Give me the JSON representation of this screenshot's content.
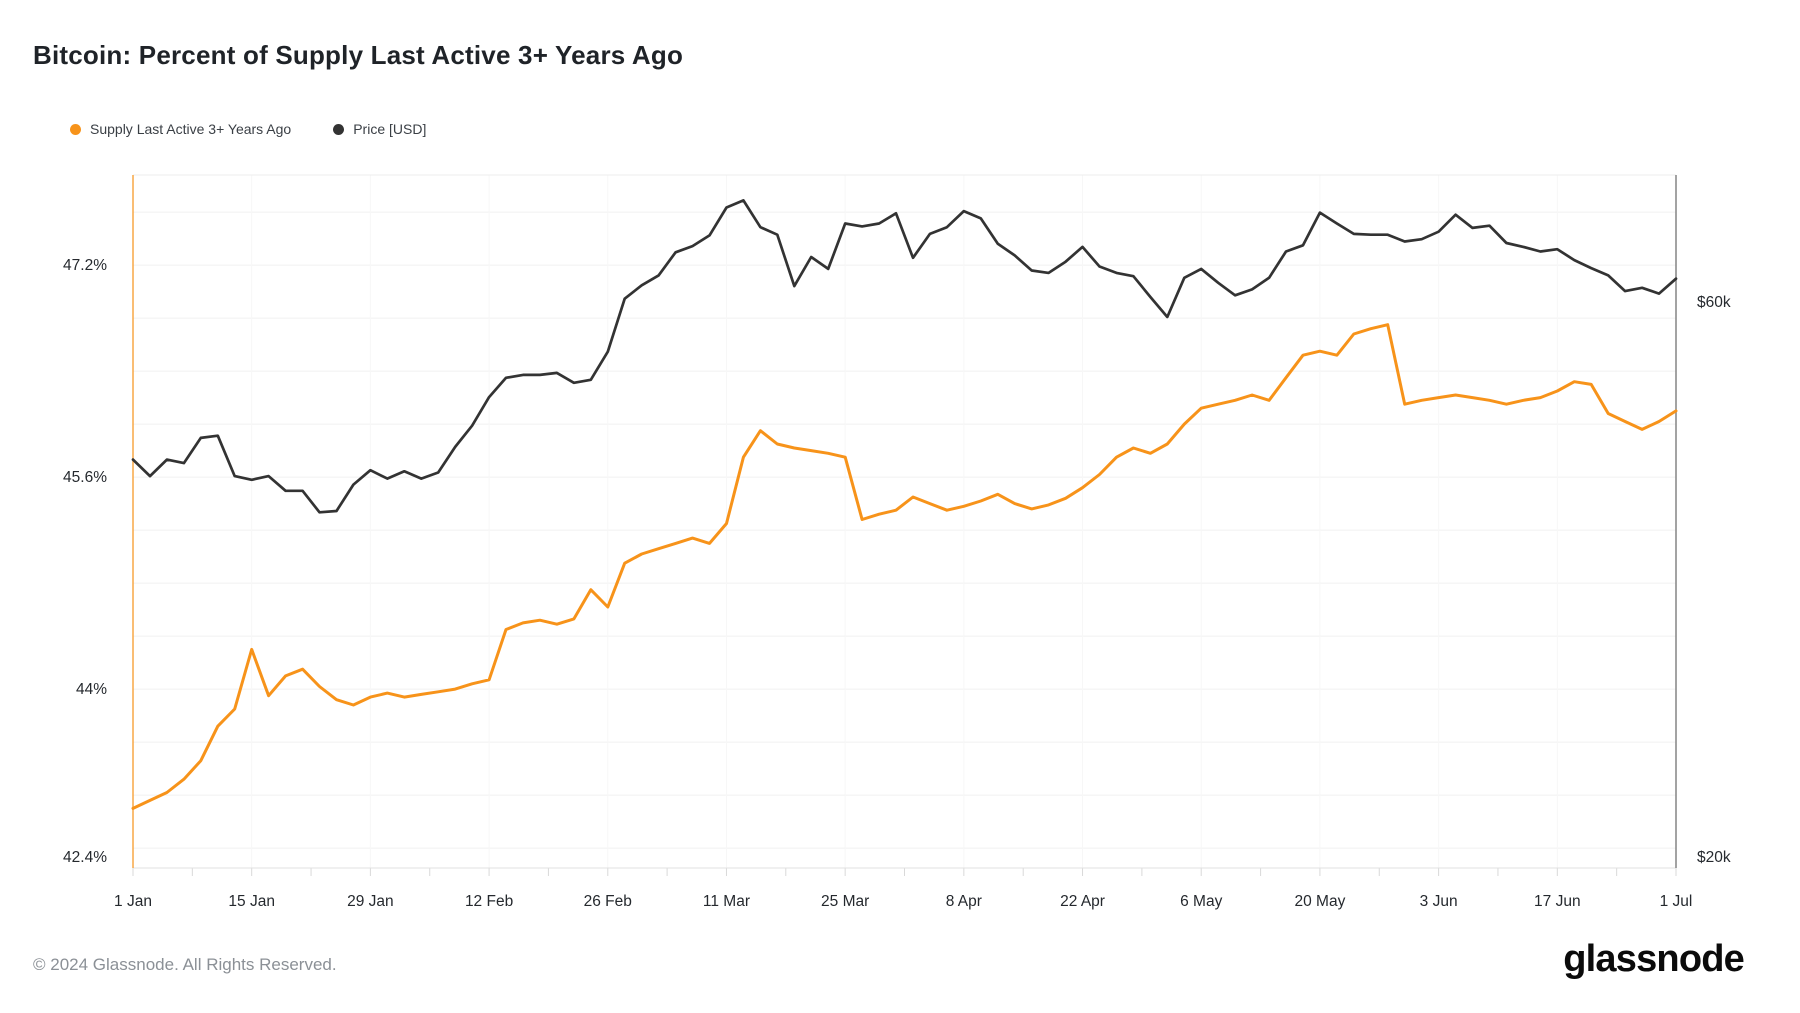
{
  "page": {
    "title": "Bitcoin: Percent of Supply Last Active 3+ Years Ago"
  },
  "legend": [
    {
      "label": "Supply Last Active 3+ Years Ago",
      "color": "#F7931A"
    },
    {
      "label": "Price [USD]",
      "color": "#333333"
    }
  ],
  "footer": {
    "copyright": "© 2024 Glassnode. All Rights Reserved.",
    "brand": "glassnode"
  },
  "chart_data": {
    "type": "line",
    "title": "Bitcoin: Percent of Supply Last Active 3+ Years Ago",
    "start_date": "1 Jan 2024",
    "end_date": "1 Jul 2024",
    "step_days": 2,
    "x_tick_labels": [
      "1 Jan",
      "15 Jan",
      "29 Jan",
      "12 Feb",
      "26 Feb",
      "11 Mar",
      "25 Mar",
      "8 Apr",
      "22 Apr",
      "6 May",
      "20 May",
      "3 Jun",
      "17 Jun",
      "1 Jul"
    ],
    "grid": "horizontal-light",
    "legend_position": "top-left",
    "left_axis": {
      "title": "Supply Last Active 3+ Years Ago",
      "unit": "%",
      "scale": "linear",
      "range": [
        42.65,
        47.88
      ],
      "grid_step": 0.4,
      "ticks": [
        {
          "value": 47.2,
          "label": "47.2%"
        },
        {
          "value": 45.6,
          "label": "45.6%"
        },
        {
          "value": 44.0,
          "label": "44%"
        },
        {
          "value": 42.4,
          "label": "42.4%",
          "clamped": true
        }
      ]
    },
    "right_axis": {
      "title": "Price [USD]",
      "unit": "USD",
      "scale": "log",
      "range": [
        20000,
        76800
      ],
      "ticks": [
        {
          "value": 60000,
          "label": "$60k"
        },
        {
          "value": 20000,
          "label": "$20k",
          "clamped": true
        }
      ]
    },
    "series": [
      {
        "name": "Supply Last Active 3+ Years Ago",
        "axis": "left",
        "color": "#F7931A",
        "values": [
          43.1,
          43.16,
          43.22,
          43.32,
          43.46,
          43.72,
          43.85,
          44.3,
          43.95,
          44.1,
          44.15,
          44.02,
          43.92,
          43.88,
          43.94,
          43.97,
          43.94,
          43.96,
          43.98,
          44.0,
          44.04,
          44.07,
          44.45,
          44.5,
          44.52,
          44.49,
          44.53,
          44.75,
          44.62,
          44.95,
          45.02,
          45.06,
          45.1,
          45.14,
          45.1,
          45.25,
          45.75,
          45.95,
          45.85,
          45.82,
          45.8,
          45.78,
          45.75,
          45.28,
          45.32,
          45.35,
          45.45,
          45.4,
          45.35,
          45.38,
          45.42,
          45.47,
          45.4,
          45.36,
          45.39,
          45.44,
          45.52,
          45.62,
          45.75,
          45.82,
          45.78,
          45.85,
          46.0,
          46.12,
          46.15,
          46.18,
          46.22,
          46.18,
          46.35,
          46.52,
          46.55,
          46.52,
          46.68,
          46.72,
          46.75,
          46.15,
          46.18,
          46.2,
          46.22,
          46.2,
          46.18,
          46.15,
          46.18,
          46.2,
          46.25,
          46.32,
          46.3,
          46.08,
          46.02,
          45.96,
          46.02,
          46.1
        ]
      },
      {
        "name": "Price [USD]",
        "axis": "right",
        "color": "#333333",
        "values": [
          44200,
          42800,
          44200,
          43900,
          46100,
          46300,
          42800,
          42500,
          42800,
          41600,
          41600,
          39900,
          40000,
          42100,
          43300,
          42600,
          43200,
          42600,
          43100,
          45300,
          47200,
          49900,
          51800,
          52100,
          52100,
          52300,
          51300,
          51600,
          54500,
          60400,
          62000,
          63200,
          66100,
          66900,
          68300,
          72100,
          73100,
          69400,
          68400,
          61900,
          65500,
          64000,
          69900,
          69500,
          69900,
          71300,
          65400,
          68500,
          69400,
          71600,
          70600,
          67200,
          65700,
          63800,
          63500,
          64900,
          66800,
          64300,
          63500,
          63100,
          60600,
          58300,
          62900,
          64000,
          62300,
          60800,
          61500,
          62900,
          66200,
          67000,
          71400,
          69900,
          68500,
          68400,
          68400,
          67500,
          67800,
          68800,
          71100,
          69300,
          69600,
          67300,
          66800,
          66200,
          66500,
          65100,
          64100,
          63200,
          61300,
          61700,
          61000,
          62800
        ]
      }
    ]
  }
}
